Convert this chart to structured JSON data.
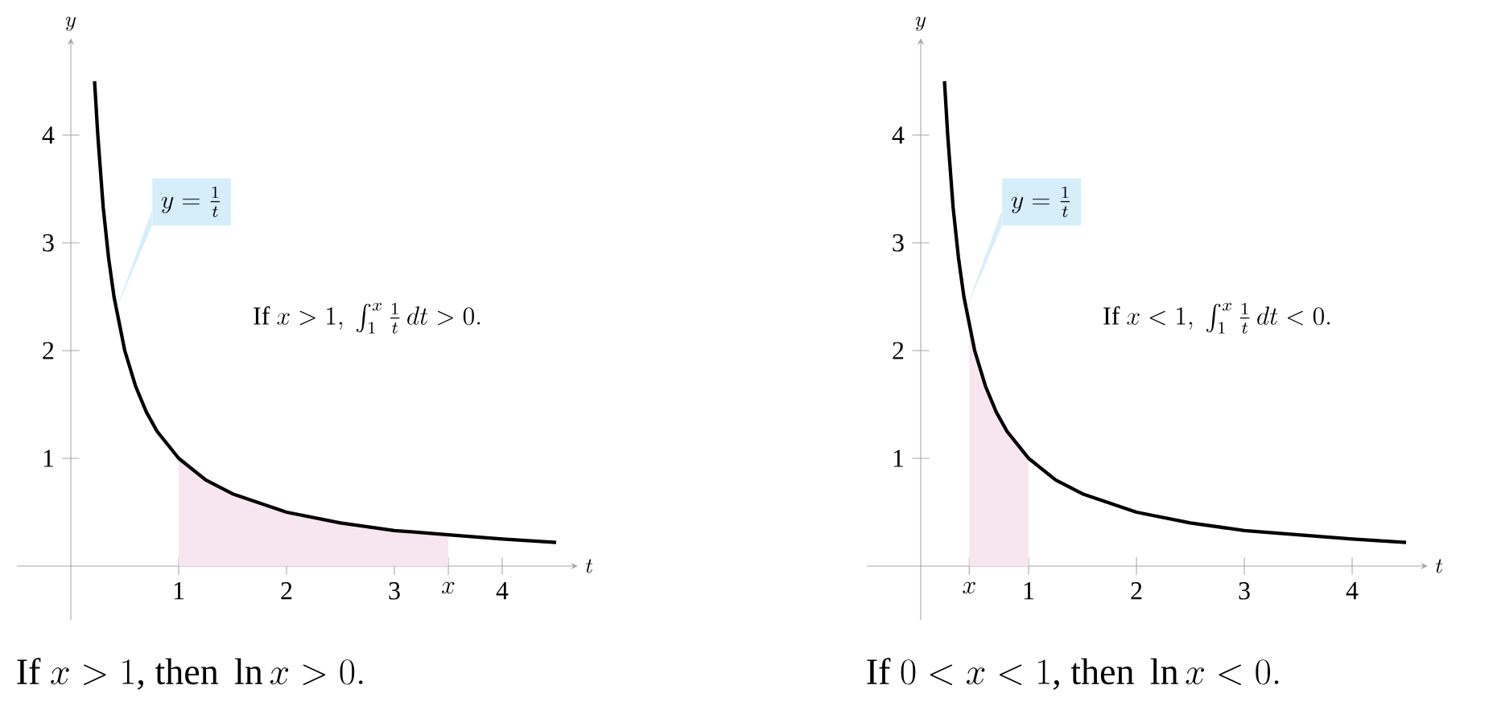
{
  "chart_data": [
    {
      "type": "line",
      "xlabel": "t",
      "ylabel": "y",
      "xlim": [
        -0.5,
        4.7
      ],
      "ylim": [
        -0.5,
        4.9
      ],
      "xticks": [
        1,
        2,
        3,
        {
          "value": 3.5,
          "label": "x"
        },
        4
      ],
      "yticks": [
        1,
        2,
        3,
        4
      ],
      "series": [
        {
          "type": "area",
          "color": "#f7e6ef",
          "x": [
            1,
            1.25,
            1.5,
            2,
            2.5,
            3,
            3.5
          ],
          "values": [
            1,
            0.8,
            0.67,
            0.5,
            0.4,
            0.33,
            0.29
          ]
        },
        {
          "color": "#000000",
          "x": [
            0.22,
            0.25,
            0.3,
            0.35,
            0.4,
            0.5,
            0.6,
            0.7,
            0.8,
            1,
            1.25,
            1.5,
            2,
            2.5,
            3,
            3.5,
            4,
            4.5
          ],
          "values": [
            4.5,
            4,
            3.33,
            2.86,
            2.5,
            2,
            1.67,
            1.43,
            1.25,
            1,
            0.8,
            0.67,
            0.5,
            0.4,
            0.33,
            0.29,
            0.25,
            0.22
          ]
        }
      ],
      "annotations": [
        {
          "text": "y=\\frac{1}{t}",
          "x": 0.42,
          "y": 2.38
        },
        "\\text{If } x>1,\\ \\int_1^x \\frac{1}{t}\\,dt>0.",
        "\\text{If } x > 1\\text{, then } \\ln x > 0."
      ]
    },
    {
      "type": "line",
      "xlabel": "t",
      "ylabel": "y",
      "xlim": [
        -0.5,
        4.7
      ],
      "ylim": [
        -0.5,
        4.9
      ],
      "xticks": [
        {
          "value": 0.45,
          "label": "x"
        },
        1,
        2,
        3,
        4
      ],
      "yticks": [
        1,
        2,
        3,
        4
      ],
      "series": [
        {
          "type": "area",
          "color": "#f7e6ef",
          "x": [
            0.45,
            0.5,
            0.6,
            0.7,
            0.8,
            1
          ],
          "values": [
            2.22,
            2,
            1.67,
            1.43,
            1.25,
            1
          ]
        },
        {
          "color": "#000000",
          "x": [
            0.22,
            0.25,
            0.3,
            0.35,
            0.4,
            0.5,
            0.6,
            0.7,
            0.8,
            1,
            1.25,
            1.5,
            2,
            2.5,
            3,
            3.5,
            4,
            4.5
          ],
          "values": [
            4.5,
            4,
            3.33,
            2.86,
            2.5,
            2,
            1.67,
            1.43,
            1.25,
            1,
            0.8,
            0.67,
            0.5,
            0.4,
            0.33,
            0.29,
            0.25,
            0.22
          ]
        }
      ],
      "annotations": [
        {
          "text": "y=\\frac{1}{t}",
          "x": 0.42,
          "y": 2.38
        },
        "\\text{If } x<1,\\ \\int_1^x \\frac{1}{t}\\,dt<0.",
        "\\text{If } 0 < x < 1\\text{, then } \\ln x < 0."
      ]
    }
  ]
}
